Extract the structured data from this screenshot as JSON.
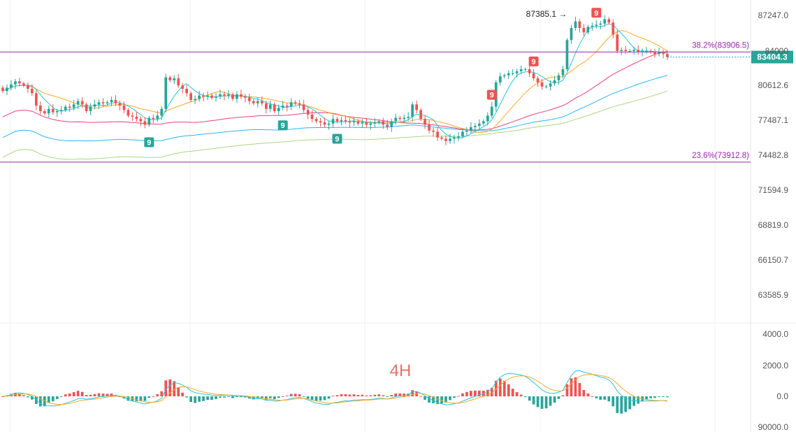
{
  "chart_data": {
    "type": "candlestick",
    "timeframe": "4H",
    "price_axis": {
      "ticks": [
        "87247.0",
        "84000",
        "80612.6",
        "77487.1",
        "74482.8",
        "71594.9",
        "68819.0",
        "66150.7",
        "63585.9"
      ],
      "tick_values": [
        87247.0,
        84000.0,
        80612.6,
        77487.1,
        74482.8,
        71594.9,
        68819.0,
        66150.7,
        63585.9
      ],
      "ylim": [
        63000,
        88500
      ]
    },
    "current_price": "83404.3",
    "current_price_value": 83404.3,
    "peak_annotation": "87385.1",
    "peak_value": 87385.1,
    "fib_levels": [
      {
        "label": "38.2%(83906.5)",
        "value": 83906.5
      },
      {
        "label": "23.6%(73912.8)",
        "value": 73912.8
      }
    ],
    "td_markers": [
      {
        "text": "9",
        "candle": 35,
        "side": "below",
        "color": "#26a69a"
      },
      {
        "text": "9",
        "candle": 67,
        "side": "below",
        "color": "#26a69a"
      },
      {
        "text": "9",
        "candle": 80,
        "side": "below",
        "color": "#26a69a"
      },
      {
        "text": "9",
        "candle": 117,
        "side": "above",
        "color": "#ef5350"
      },
      {
        "text": "9",
        "candle": 127,
        "side": "above",
        "color": "#ef5350"
      },
      {
        "text": "9",
        "candle": 142,
        "side": "above",
        "color": "#ef5350"
      }
    ],
    "candles_close": [
      80100,
      80400,
      80700,
      81000,
      80800,
      80600,
      80300,
      79900,
      78800,
      78300,
      78100,
      78500,
      78200,
      78300,
      78400,
      78700,
      78600,
      78900,
      79200,
      78900,
      78300,
      78700,
      78900,
      79100,
      79000,
      79100,
      79300,
      79000,
      78800,
      78400,
      77900,
      77800,
      77600,
      77400,
      77100,
      77700,
      77600,
      77900,
      78500,
      81400,
      81100,
      81300,
      80600,
      80300,
      79900,
      79300,
      79400,
      79700,
      79600,
      79700,
      79500,
      79600,
      79800,
      79700,
      79800,
      79400,
      79800,
      79600,
      79500,
      79200,
      79000,
      79200,
      79000,
      78500,
      78900,
      78300,
      78600,
      78800,
      78700,
      79100,
      79000,
      78900,
      78400,
      78000,
      77600,
      77400,
      77300,
      77100,
      77200,
      77600,
      77400,
      77500,
      77400,
      77300,
      77400,
      77200,
      77300,
      77100,
      77200,
      77300,
      77400,
      77100,
      76900,
      77400,
      77700,
      77600,
      77700,
      77800,
      78900,
      78400,
      77600,
      77100,
      76600,
      76500,
      76000,
      75900,
      75700,
      75900,
      76000,
      76100,
      76500,
      76600,
      76900,
      77000,
      77200,
      77400,
      77900,
      78700,
      80900,
      81500,
      81600,
      81800,
      81800,
      82000,
      82200,
      82200,
      81800,
      81300,
      80900,
      80500,
      80500,
      80800,
      81100,
      81600,
      82200,
      85000,
      86100,
      86700,
      86100,
      85700,
      86200,
      86300,
      86400,
      86500,
      86900,
      86600,
      85500,
      84000,
      84100,
      84000,
      84000,
      84100,
      83900,
      84000,
      84000,
      83900,
      83700,
      83900,
      83700,
      83404
    ],
    "candles_open": [
      80400,
      80100,
      80400,
      80700,
      81000,
      80800,
      80600,
      80300,
      79900,
      78800,
      78300,
      78100,
      78500,
      78200,
      78300,
      78400,
      78700,
      78600,
      78900,
      79200,
      78900,
      78300,
      78700,
      78900,
      79100,
      79000,
      79100,
      79300,
      79000,
      78800,
      78400,
      77900,
      77800,
      77600,
      77400,
      77100,
      77700,
      77600,
      77900,
      78500,
      81400,
      81100,
      81300,
      80600,
      80300,
      79900,
      79300,
      79400,
      79700,
      79600,
      79700,
      79500,
      79600,
      79800,
      79700,
      79800,
      79400,
      79800,
      79600,
      79500,
      79200,
      79000,
      79200,
      79000,
      78500,
      78900,
      78300,
      78600,
      78800,
      78700,
      79100,
      79000,
      78900,
      78400,
      78000,
      77600,
      77400,
      77300,
      77100,
      77200,
      77600,
      77400,
      77500,
      77400,
      77300,
      77400,
      77200,
      77300,
      77100,
      77200,
      77300,
      77400,
      77100,
      76900,
      77400,
      77700,
      77600,
      77700,
      77800,
      78900,
      78400,
      77600,
      77100,
      76600,
      76500,
      76000,
      75900,
      75700,
      75900,
      76000,
      76100,
      76500,
      76600,
      76900,
      77000,
      77200,
      77400,
      77900,
      78700,
      80900,
      81500,
      81600,
      81800,
      81800,
      82000,
      82200,
      82200,
      81800,
      81300,
      80900,
      80500,
      80500,
      80800,
      81100,
      81600,
      82200,
      85000,
      86100,
      86700,
      86100,
      85700,
      86200,
      86300,
      86400,
      86500,
      86900,
      86600,
      85500,
      84000,
      84100,
      84000,
      84000,
      84100,
      83900,
      84000,
      84000,
      83900,
      83700,
      83900,
      83700
    ],
    "macd_axis": {
      "ticks": [
        "4000.0",
        "2000.0",
        "0.0"
      ],
      "tick_values": [
        4000,
        2000,
        0
      ],
      "ylim": [
        -2500,
        4500
      ]
    },
    "bottom_axis_label": "90000.0",
    "colors": {
      "up": "#26a69a",
      "down": "#ef5350",
      "fib": "#9c27b0",
      "ma_fast": "#26c6da",
      "ma_mid": "#ffa726",
      "ma_slow1": "#ec407a",
      "ma_slow2": "#29b6f6",
      "ma_slow3": "#aed581",
      "price_tag": "#26a69a",
      "timeframe_text": "#e57368"
    }
  }
}
